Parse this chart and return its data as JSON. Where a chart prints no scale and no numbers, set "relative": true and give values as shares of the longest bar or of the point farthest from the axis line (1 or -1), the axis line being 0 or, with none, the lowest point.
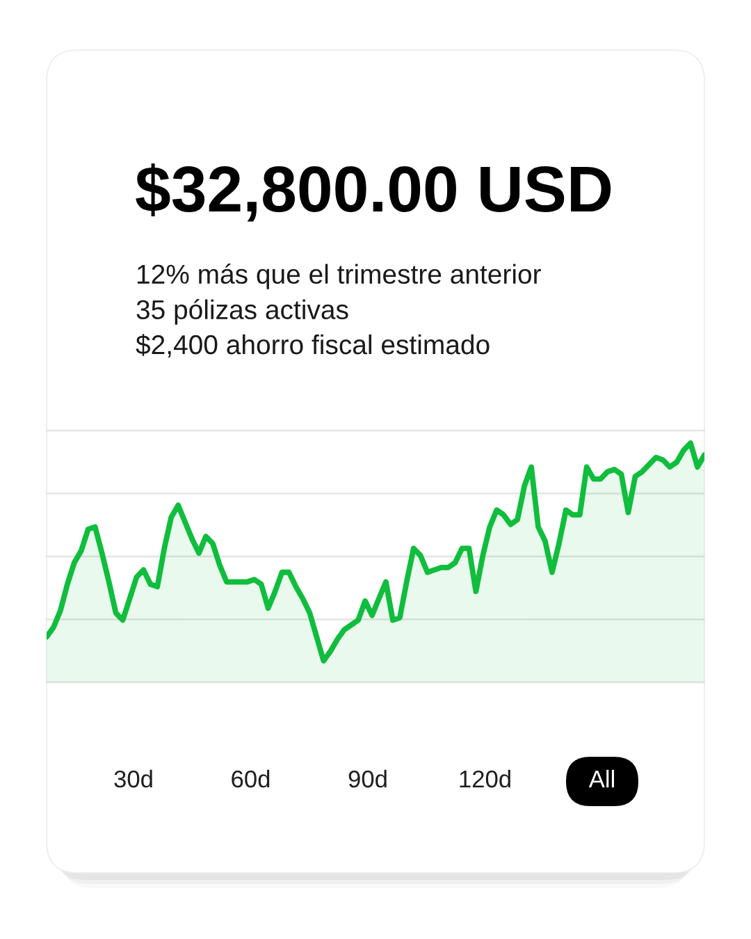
{
  "chart_data": {
    "type": "area",
    "title": "$32,800.00 USD",
    "subtitle": "12% más que el trimestre anterior\n35 pólizas activas\n$2,400 ahorro fiscal estimado",
    "annotations": [
      "30d",
      "60d",
      "90d",
      "120d",
      "All"
    ],
    "categories": [
      null,
      null,
      null,
      null,
      null,
      null,
      null,
      null,
      null,
      null,
      null,
      null,
      null,
      null,
      null,
      null,
      null,
      null,
      null,
      null,
      null,
      null,
      null,
      null,
      null,
      null,
      null,
      null,
      null,
      null,
      null,
      null,
      null,
      null,
      null,
      null,
      null,
      null,
      null,
      null,
      null,
      null,
      null,
      null,
      null,
      null,
      null,
      null,
      null,
      null,
      null,
      null,
      null,
      null,
      null,
      null,
      null,
      null,
      null,
      null,
      null,
      null,
      null,
      null,
      null,
      null,
      null,
      null,
      null,
      null,
      null,
      null,
      null,
      null,
      null,
      null,
      null,
      null,
      null,
      null,
      null,
      null,
      null,
      null,
      null,
      null,
      null,
      null,
      null,
      null,
      null,
      null,
      null,
      null,
      null,
      null
    ],
    "values": [
      0.19,
      0.23,
      0.3,
      0.41,
      0.5,
      0.55,
      0.64,
      0.65,
      0.54,
      0.42,
      0.29,
      0.26,
      0.35,
      0.44,
      0.47,
      0.41,
      0.4,
      0.56,
      0.69,
      0.74,
      0.67,
      0.6,
      0.54,
      0.61,
      0.58,
      0.49,
      0.42,
      0.42,
      0.42,
      0.42,
      0.43,
      0.41,
      0.31,
      0.38,
      0.46,
      0.46,
      0.4,
      0.35,
      0.29,
      0.19,
      0.09,
      0.13,
      0.18,
      0.22,
      0.24,
      0.26,
      0.34,
      0.28,
      0.35,
      0.42,
      0.26,
      0.27,
      0.42,
      0.56,
      0.53,
      0.46,
      0.47,
      0.48,
      0.48,
      0.5,
      0.56,
      0.56,
      0.38,
      0.53,
      0.65,
      0.72,
      0.7,
      0.66,
      0.68,
      0.82,
      0.9,
      0.65,
      0.59,
      0.46,
      0.58,
      0.72,
      0.7,
      0.7,
      0.9,
      0.85,
      0.85,
      0.88,
      0.89,
      0.87,
      0.71,
      0.86,
      0.88,
      0.91,
      0.94,
      0.93,
      0.9,
      0.92,
      0.97,
      1.0,
      0.9,
      0.95
    ],
    "color": "#10bd3c",
    "relative": true,
    "grid": "y"
  }
}
